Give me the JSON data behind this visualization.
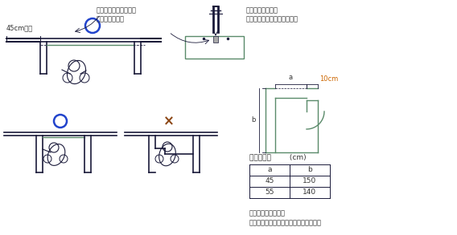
{
  "bg_color": "#ffffff",
  "text_color": "#333333",
  "dark_color": "#1a1a3a",
  "green_color": "#5a8a6a",
  "blue_circle_color": "#2244cc",
  "brown_x_color": "#8B4513",
  "label_45cm": "45cm以上",
  "label_wheelchair_space": "車いす使用者のための\nスペースの設置",
  "label_threshold": "段差のある敷居や\n溝などをできるだけ設けない",
  "label_dimension": "各部の寸法        (cm)",
  "label_10cm": "10cm",
  "label_a": "a",
  "label_b": "b",
  "table_headers": [
    "a",
    "b"
  ],
  "table_rows": [
    [
      "45",
      "150"
    ],
    [
      "55",
      "140"
    ]
  ],
  "label_note": "＊共同住宅の住戸の\n　アルコーブ型出入口はこの限りでない",
  "label_circle_o": "○",
  "label_x": "×"
}
